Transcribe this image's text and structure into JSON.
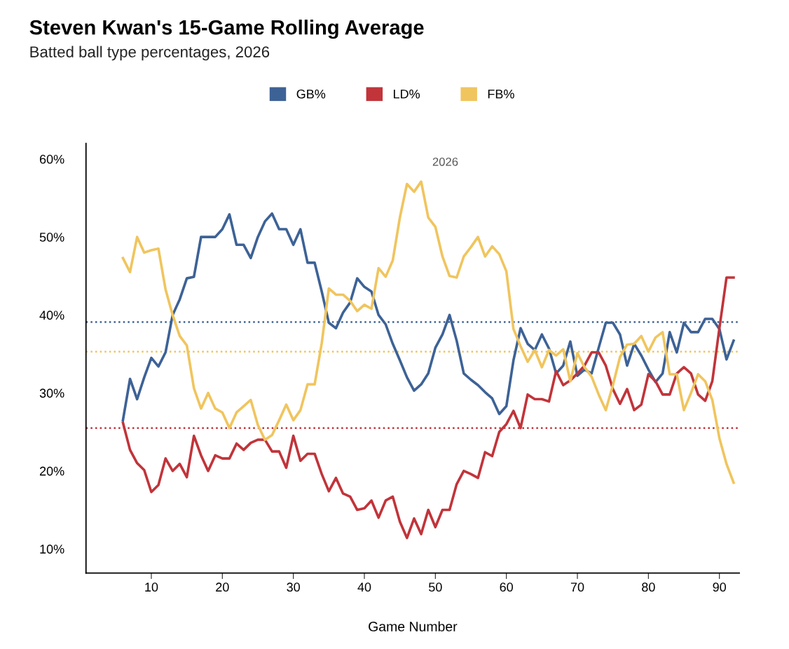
{
  "chart_data": {
    "type": "line",
    "title": "Steven Kwan's 15-Game Rolling Average",
    "subtitle": "Batted ball type percentages, 2026",
    "xlabel": "Game Number",
    "x": [
      6,
      7,
      8,
      9,
      10,
      11,
      12,
      13,
      14,
      15,
      16,
      17,
      18,
      19,
      20,
      21,
      22,
      23,
      24,
      25,
      26,
      27,
      28,
      29,
      30,
      31,
      32,
      33,
      34,
      35,
      36,
      37,
      38,
      39,
      40,
      41,
      42,
      43,
      44,
      45,
      46,
      47,
      48,
      49,
      50,
      51,
      52,
      53,
      54,
      55,
      56,
      57,
      58,
      59,
      60,
      61,
      62,
      63,
      64,
      65,
      66,
      67,
      68,
      69,
      70,
      71,
      72,
      73,
      74,
      75,
      76,
      77,
      78,
      79,
      80,
      81,
      82,
      83,
      84,
      85,
      86,
      87,
      88,
      89,
      90,
      91,
      92
    ],
    "series": [
      {
        "name": "GB%",
        "color": "#3d6296",
        "values": [
          26.5,
          31.8,
          29.2,
          32,
          34.5,
          33.4,
          35.2,
          40,
          42,
          44.7,
          44.9,
          50,
          50,
          50,
          51,
          52.9,
          49,
          49,
          47.3,
          50,
          52,
          53,
          51,
          51,
          49,
          51,
          46.7,
          46.7,
          43,
          39,
          38.3,
          40.3,
          41.6,
          44.7,
          43.6,
          43,
          40,
          38.8,
          36.3,
          34.2,
          32,
          30.3,
          31.1,
          32.5,
          35.8,
          37.5,
          40,
          36.7,
          32.5,
          31.7,
          31,
          30.1,
          29.3,
          27.3,
          28.3,
          34.2,
          38.3,
          36.3,
          35.5,
          37.5,
          35.7,
          32.5,
          33.5,
          36.6,
          32.2,
          33,
          32.5,
          35.8,
          39,
          39,
          37.5,
          33.5,
          36.3,
          34.8,
          33,
          31.4,
          32.5,
          37.8,
          35.2,
          39,
          37.8,
          37.8,
          39.5,
          39.5,
          38.2,
          34.3,
          36.7
        ]
      },
      {
        "name": "LD%",
        "color": "#c1343a",
        "values": [
          26.2,
          22.7,
          21,
          20.1,
          17.3,
          18.2,
          21.6,
          20,
          20.9,
          19.2,
          24.5,
          22,
          20,
          22,
          21.6,
          21.6,
          23.5,
          22.7,
          23.6,
          24,
          24,
          22.5,
          22.5,
          20.4,
          24.5,
          21.3,
          22.2,
          22.2,
          19.6,
          17.4,
          19.1,
          17.1,
          16.7,
          15,
          15.2,
          16.2,
          14,
          16.2,
          16.7,
          13.5,
          11.4,
          13.9,
          11.9,
          15,
          12.8,
          15,
          15,
          18.3,
          20,
          19.6,
          19.1,
          22.4,
          21.9,
          25,
          26,
          27.7,
          25.5,
          29.8,
          29.2,
          29.2,
          28.9,
          32.8,
          31,
          31.6,
          32.5,
          33.5,
          35.2,
          35.2,
          33.5,
          30.5,
          28.6,
          30.5,
          27.8,
          28.5,
          32.4,
          31.5,
          29.8,
          29.8,
          32.5,
          33.3,
          32.5,
          29.8,
          29,
          31.5,
          38.3,
          44.8,
          44.8
        ]
      },
      {
        "name": "FB%",
        "color": "#f0c55e",
        "values": [
          47.3,
          45.5,
          50,
          48,
          48.3,
          48.5,
          43.3,
          40,
          37.3,
          36.1,
          30.6,
          28,
          30,
          28,
          27.5,
          25.5,
          27.5,
          28.3,
          29.1,
          25.9,
          24,
          24.6,
          26.5,
          28.5,
          26.5,
          27.8,
          31.1,
          31.1,
          36.4,
          43.4,
          42.6,
          42.6,
          41.8,
          40.5,
          41.3,
          40.8,
          46,
          44.9,
          47,
          52.5,
          56.8,
          55.8,
          57.1,
          52.5,
          51.3,
          47.5,
          45,
          44.8,
          47.5,
          48.7,
          50,
          47.5,
          48.8,
          47.8,
          45.6,
          38.2,
          36,
          34,
          35.5,
          33.3,
          35.5,
          34.8,
          35.6,
          31.5,
          35.1,
          33.3,
          32.1,
          29.8,
          27.8,
          31,
          34.6,
          36.2,
          36.3,
          37.3,
          35.3,
          37.1,
          37.8,
          32.4,
          32.4,
          27.8,
          30,
          32.4,
          31.5,
          29.1,
          24.2,
          20.9,
          18.5
        ]
      }
    ],
    "ref_lines": [
      {
        "axis": "y",
        "value": 39.1,
        "color": "#3d6296",
        "line_style": "dotted"
      },
      {
        "axis": "y",
        "value": 35.3,
        "color": "#f0c55e",
        "line_style": "dotted"
      },
      {
        "axis": "y",
        "value": 25.5,
        "color": "#c1343a",
        "line_style": "dotted"
      }
    ],
    "annotations": [
      "2026"
    ],
    "xlim": [
      0.8,
      92.8
    ],
    "ylim": [
      6.9,
      62
    ],
    "xticks": [
      10,
      20,
      30,
      40,
      50,
      60,
      70,
      80,
      90
    ],
    "yticks": [
      {
        "value": 10,
        "label": "10%"
      },
      {
        "value": 20,
        "label": "20%"
      },
      {
        "value": 30,
        "label": "30%"
      },
      {
        "value": 40,
        "label": "40%"
      },
      {
        "value": 50,
        "label": "50%"
      },
      {
        "value": 60,
        "label": "60%"
      }
    ],
    "legend": "top",
    "grid": false,
    "marker": "none",
    "line_style": "solid"
  }
}
